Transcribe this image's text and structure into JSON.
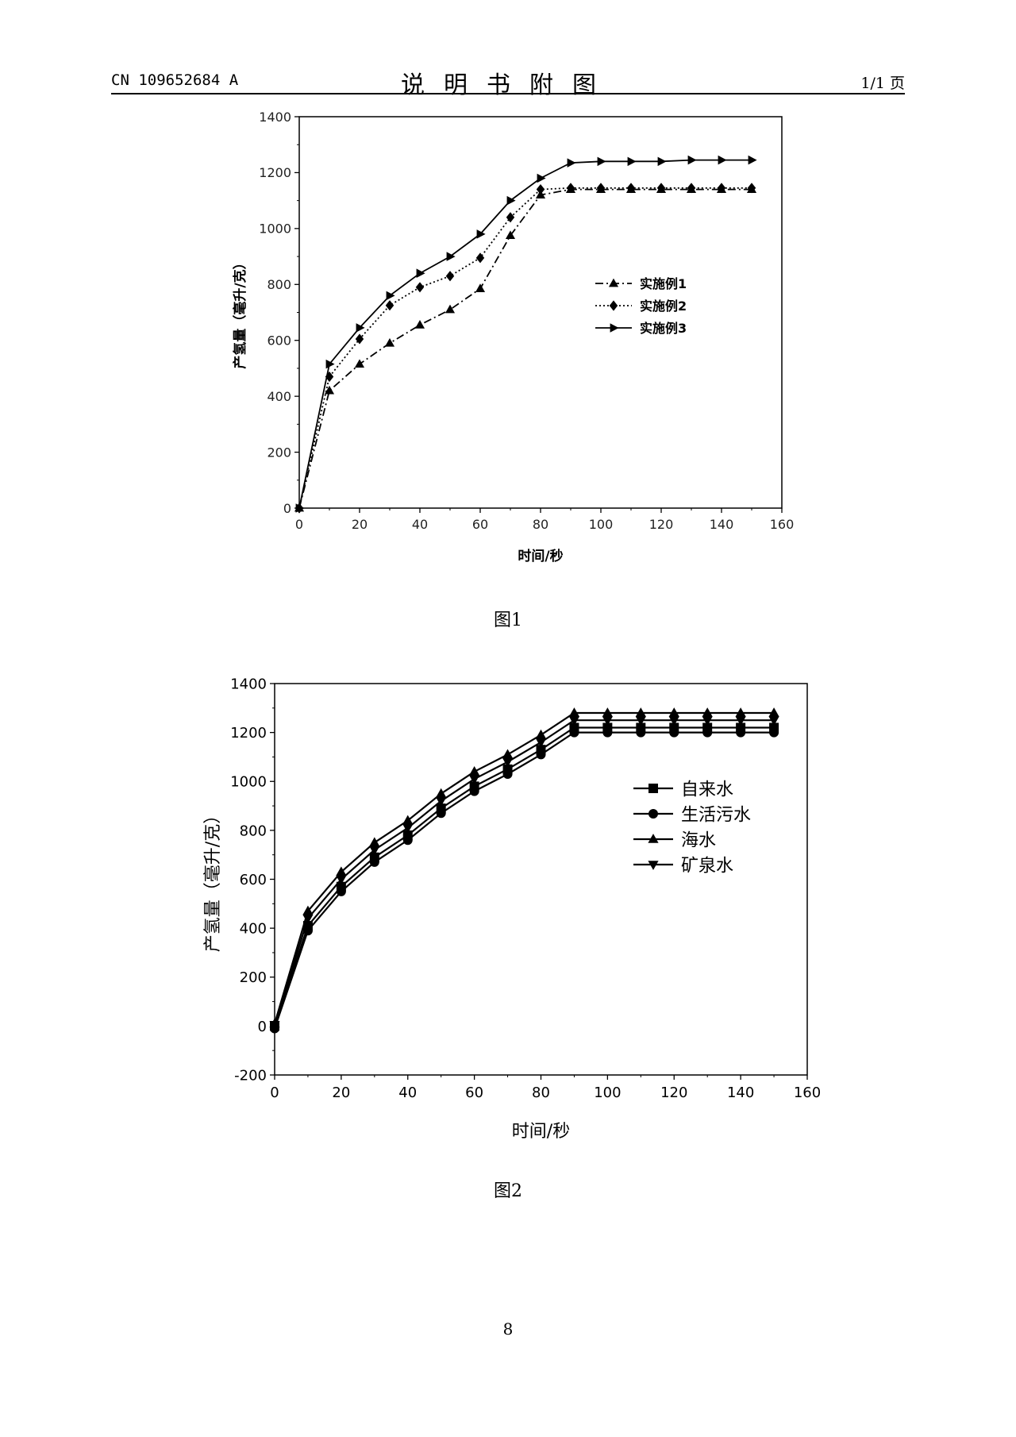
{
  "header": {
    "doc_number": "CN 109652684 A",
    "title": "说明书附图",
    "page_of": "1/1 页"
  },
  "figures": [
    {
      "caption": "图1"
    },
    {
      "caption": "图2"
    }
  ],
  "page_number": "8",
  "chart_data": [
    {
      "type": "line",
      "title": "",
      "xlabel": "时间/秒",
      "ylabel": "产氢量（毫升/克）",
      "xlim": [
        0,
        160
      ],
      "ylim": [
        0,
        1400
      ],
      "xticks": [
        "0",
        "20",
        "40",
        "60",
        "80",
        "100",
        "120",
        "140",
        "160"
      ],
      "yticks": [
        "0",
        "200",
        "400",
        "600",
        "800",
        "1000",
        "1200",
        "1400"
      ],
      "legend_position": "center-right",
      "x": [
        0,
        10,
        20,
        30,
        40,
        50,
        60,
        70,
        80,
        90,
        100,
        110,
        120,
        130,
        140,
        150
      ],
      "series": [
        {
          "name": "实施例1",
          "marker": "triangle-up",
          "dash": "long-dash-dot",
          "values": [
            0,
            420,
            515,
            590,
            655,
            710,
            785,
            975,
            1120,
            1140,
            1140,
            1140,
            1140,
            1140,
            1140,
            1140
          ]
        },
        {
          "name": "实施例2",
          "marker": "diamond",
          "dash": "dotted",
          "values": [
            0,
            470,
            605,
            725,
            790,
            830,
            895,
            1040,
            1140,
            1145,
            1145,
            1145,
            1145,
            1145,
            1145,
            1145
          ]
        },
        {
          "name": "实施例3",
          "marker": "triangle-right",
          "dash": "solid",
          "values": [
            0,
            515,
            645,
            760,
            840,
            900,
            980,
            1100,
            1180,
            1235,
            1240,
            1240,
            1240,
            1245,
            1245,
            1245
          ]
        }
      ]
    },
    {
      "type": "line",
      "title": "",
      "xlabel": "时间/秒",
      "ylabel": "产氢量（毫升/克）",
      "xlim": [
        0,
        160
      ],
      "ylim": [
        -200,
        1400
      ],
      "xticks": [
        "0",
        "20",
        "40",
        "60",
        "80",
        "100",
        "120",
        "140",
        "160"
      ],
      "yticks": [
        "-200",
        "0",
        "200",
        "400",
        "600",
        "800",
        "1000",
        "1200",
        "1400"
      ],
      "legend_position": "top-right",
      "x": [
        0,
        10,
        20,
        30,
        40,
        50,
        60,
        70,
        80,
        90,
        100,
        110,
        120,
        130,
        140,
        150
      ],
      "series": [
        {
          "name": "自来水",
          "marker": "square",
          "values": [
            0,
            410,
            570,
            690,
            780,
            890,
            980,
            1050,
            1130,
            1220,
            1220,
            1220,
            1220,
            1220,
            1220,
            1220
          ]
        },
        {
          "name": "生活污水",
          "marker": "circle",
          "values": [
            -10,
            390,
            550,
            670,
            760,
            870,
            960,
            1030,
            1110,
            1200,
            1200,
            1200,
            1200,
            1200,
            1200,
            1200
          ]
        },
        {
          "name": "海水",
          "marker": "triangle-up",
          "values": [
            10,
            470,
            630,
            750,
            840,
            950,
            1040,
            1110,
            1190,
            1280,
            1280,
            1280,
            1280,
            1280,
            1280,
            1280
          ]
        },
        {
          "name": "矿泉水",
          "marker": "triangle-down",
          "values": [
            5,
            440,
            600,
            720,
            810,
            920,
            1010,
            1080,
            1160,
            1250,
            1250,
            1250,
            1250,
            1250,
            1250,
            1250
          ]
        }
      ]
    }
  ]
}
